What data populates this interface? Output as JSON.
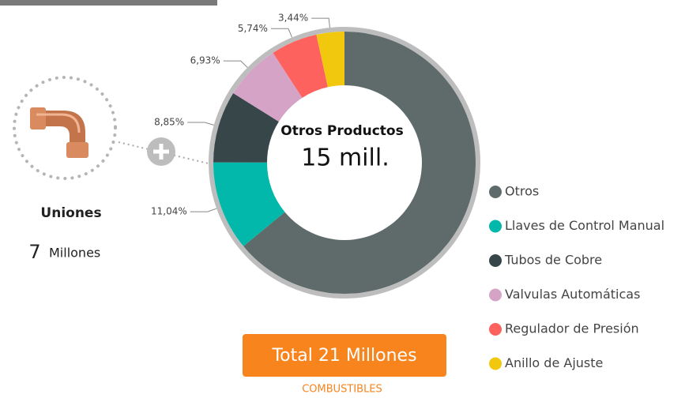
{
  "chart_data": {
    "type": "donut",
    "categories": [
      "Otros",
      "Llaves de Control Manual",
      "Tubos de Cobre",
      "Valvulas Automáticas",
      "Regulador de Presión",
      "Anillo de Ajuste"
    ],
    "values": [
      64,
      11.04,
      8.85,
      6.93,
      5.74,
      3.44
    ],
    "value_labels": [
      null,
      "11,04%",
      "8,85%",
      "6,93%",
      "5,74%",
      "3,44%"
    ],
    "colors": [
      "#5f6b6b",
      "#01b8aa",
      "#374649",
      "#d4a3c6",
      "#fd625e",
      "#f2c80f"
    ],
    "legend": "right",
    "center_title": "Otros Productos",
    "center_value": "15 mill."
  },
  "card": {
    "title": "Uniones",
    "value": "7",
    "unit": "Millones"
  },
  "button": {
    "label": "Total 21 Millones"
  },
  "footer": {
    "link": "COMBUSTIBLES"
  }
}
